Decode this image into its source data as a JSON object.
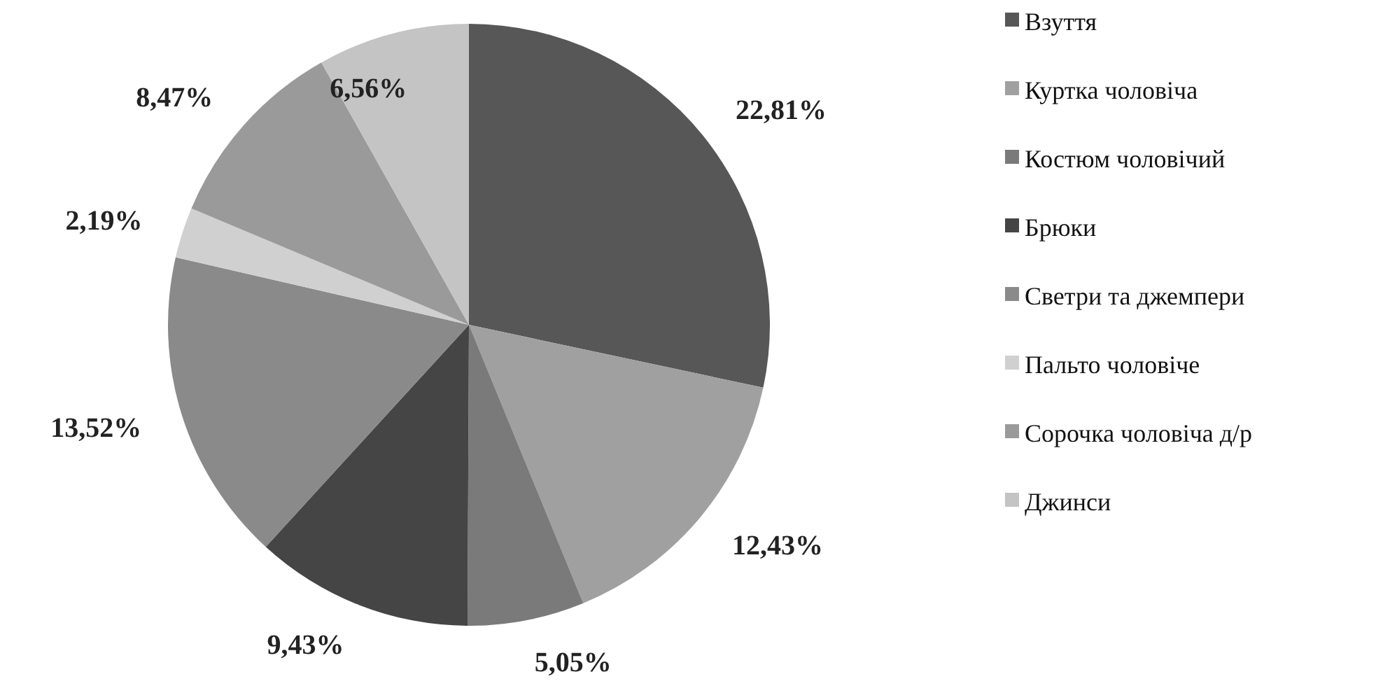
{
  "chart_data": {
    "type": "pie",
    "categories": [
      "Взуття",
      "Куртка чоловіча",
      "Костюм чоловічий",
      "Брюки",
      "Светри та джемпери",
      "Пальто чоловіче",
      "Сорочка чоловіча д/р",
      "Джинси"
    ],
    "values": [
      22.81,
      12.43,
      5.05,
      9.43,
      13.52,
      2.19,
      8.47,
      6.56
    ],
    "value_labels": [
      "22,81%",
      "12,43%",
      "5,05%",
      "9,43%",
      "13,52%",
      "2,19%",
      "8,47%",
      "6,56%"
    ],
    "colors": [
      "#575757",
      "#a0a0a0",
      "#7a7a7a",
      "#454545",
      "#8a8a8a",
      "#d0d0d0",
      "#9a9a9a",
      "#c4c4c4"
    ],
    "legend": "right"
  }
}
